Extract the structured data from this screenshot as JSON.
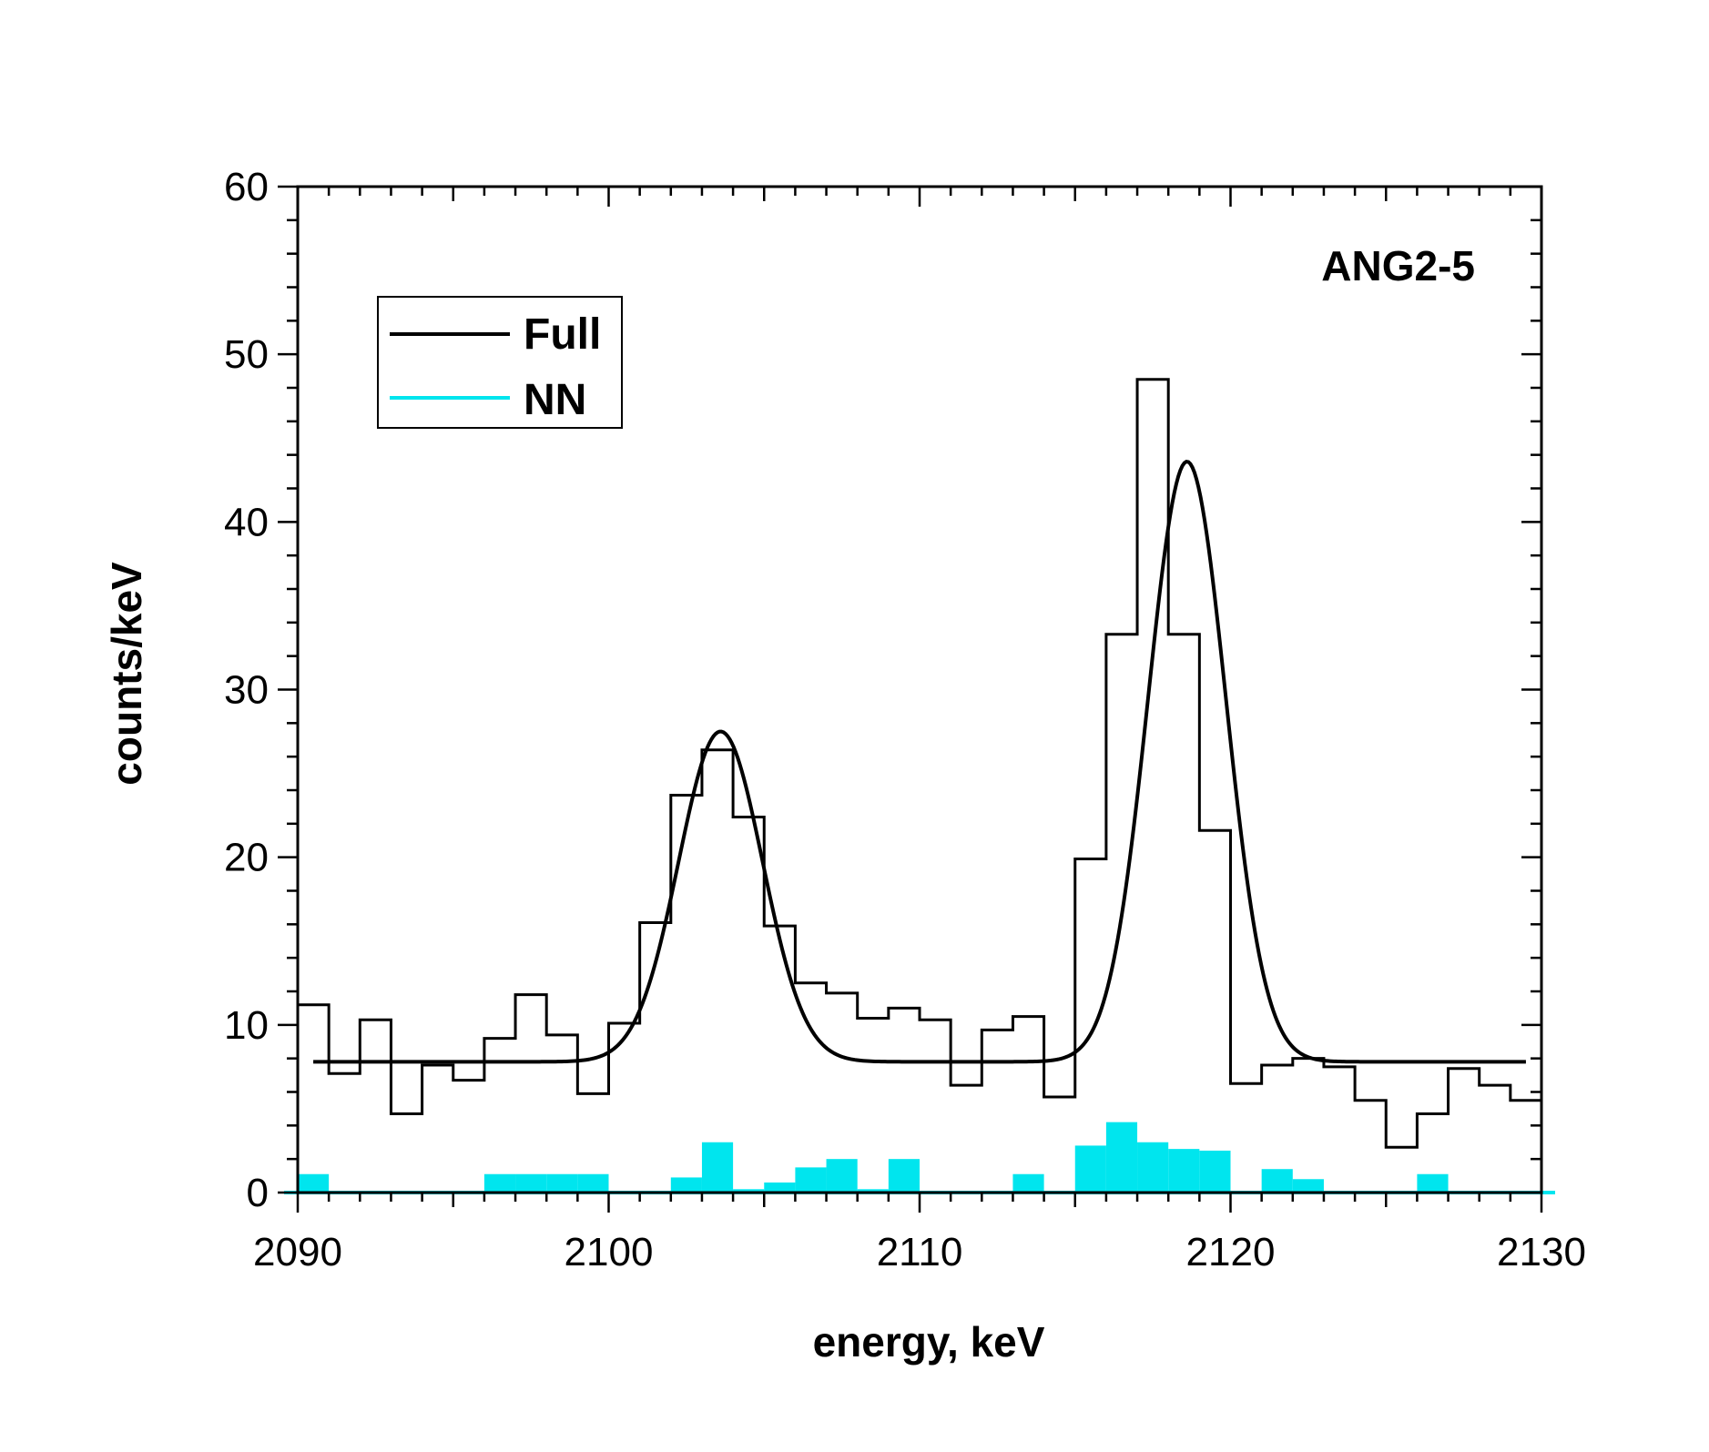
{
  "chart_data": {
    "type": "histogram",
    "title": "",
    "annotation": "ANG2-5",
    "xlabel": "energy, keV",
    "ylabel": "counts/keV",
    "xlim": [
      2090,
      2130
    ],
    "ylim": [
      0,
      60
    ],
    "x_ticks": [
      2090,
      2100,
      2110,
      2120,
      2130
    ],
    "y_ticks": [
      0,
      10,
      20,
      30,
      40,
      50,
      60
    ],
    "x_tick_labels": [
      "2090",
      "2100",
      "2110",
      "2120",
      "2130"
    ],
    "y_tick_labels": [
      "0",
      "10",
      "20",
      "30",
      "40",
      "50",
      "60"
    ],
    "legend": {
      "position": "top-left",
      "entries": [
        {
          "label": "Full",
          "color": "#000000"
        },
        {
          "label": "NN",
          "color": "#00e5ee"
        }
      ]
    },
    "bin_start": 2090,
    "bin_width": 1,
    "series": [
      {
        "name": "Full",
        "color": "#000000",
        "style": "step",
        "values": [
          11.2,
          7.1,
          10.3,
          4.7,
          7.6,
          6.7,
          9.2,
          11.8,
          9.4,
          5.9,
          10.1,
          16.1,
          23.7,
          26.4,
          22.4,
          15.9,
          12.5,
          11.9,
          10.4,
          11.0,
          10.3,
          6.4,
          9.7,
          10.5,
          5.7,
          19.9,
          33.3,
          48.5,
          33.3,
          21.6,
          6.5,
          7.6,
          8.0,
          7.5,
          5.5,
          2.7,
          4.7,
          7.4,
          6.4,
          5.5
        ]
      },
      {
        "name": "NN",
        "color": "#00e5ee",
        "style": "filled-step",
        "values": [
          1.1,
          0,
          0,
          0,
          0,
          0,
          1.1,
          1.1,
          1.1,
          1.1,
          0,
          0,
          0.9,
          3.0,
          0.2,
          0.6,
          1.5,
          2.0,
          0.2,
          2.0,
          0,
          0,
          0,
          1.1,
          0,
          2.8,
          4.2,
          3.0,
          2.6,
          2.5,
          0,
          1.4,
          0.8,
          0,
          0,
          0,
          1.1,
          0,
          0,
          0
        ]
      },
      {
        "name": "Fit",
        "color": "#000000",
        "style": "curve",
        "x_range": [
          2090.5,
          2129.5
        ],
        "background": 7.8,
        "peaks": [
          {
            "center": 2103.6,
            "amplitude": 19.7,
            "sigma": 1.35
          },
          {
            "center": 2118.6,
            "amplitude": 35.8,
            "sigma": 1.25
          }
        ]
      }
    ]
  }
}
